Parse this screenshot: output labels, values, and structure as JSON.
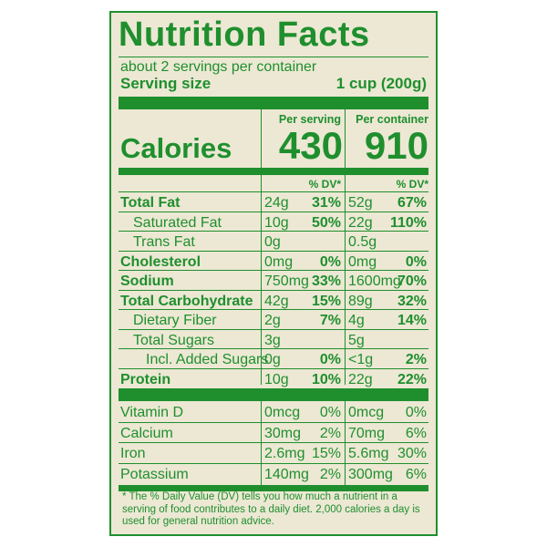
{
  "title": "Nutrition Facts",
  "servings": "about 2 servings per container",
  "serving_size": {
    "label": "Serving size",
    "value": "1 cup (200g)"
  },
  "columns": {
    "per_serving": "Per serving",
    "per_container": "Per container"
  },
  "calories": {
    "label": "Calories",
    "per_serving": "430",
    "per_container": "910"
  },
  "dv_header": "% DV*",
  "nutrients": [
    {
      "label": "Total Fat",
      "s_amt": "24g",
      "s_dv": "31%",
      "c_amt": "52g",
      "c_dv": "67%"
    },
    {
      "label": "Saturated Fat",
      "s_amt": "10g",
      "s_dv": "50%",
      "c_amt": "22g",
      "c_dv": "110%"
    },
    {
      "label": "Trans Fat",
      "s_amt": "0g",
      "s_dv": "",
      "c_amt": "0.5g",
      "c_dv": ""
    },
    {
      "label": "Cholesterol",
      "s_amt": "0mg",
      "s_dv": "0%",
      "c_amt": "0mg",
      "c_dv": "0%"
    },
    {
      "label": "Sodium",
      "s_amt": "750mg",
      "s_dv": "33%",
      "c_amt": "1600mg",
      "c_dv": "70%"
    },
    {
      "label": "Total Carbohydrate",
      "s_amt": "42g",
      "s_dv": "15%",
      "c_amt": "89g",
      "c_dv": "32%"
    },
    {
      "label": "Dietary Fiber",
      "s_amt": "2g",
      "s_dv": "7%",
      "c_amt": "4g",
      "c_dv": "14%"
    },
    {
      "label": "Total Sugars",
      "s_amt": "3g",
      "s_dv": "",
      "c_amt": "5g",
      "c_dv": ""
    },
    {
      "label": "Incl. Added Sugars",
      "s_amt": "0g",
      "s_dv": "0%",
      "c_amt": "<1g",
      "c_dv": "2%"
    },
    {
      "label": "Protein",
      "s_amt": "10g",
      "s_dv": "10%",
      "c_amt": "22g",
      "c_dv": "22%"
    }
  ],
  "vitamins": [
    {
      "label": "Vitamin D",
      "s_amt": "0mcg",
      "s_dv": "0%",
      "c_amt": "0mcg",
      "c_dv": "0%"
    },
    {
      "label": "Calcium",
      "s_amt": "30mg",
      "s_dv": "2%",
      "c_amt": "70mg",
      "c_dv": "6%"
    },
    {
      "label": "Iron",
      "s_amt": "2.6mg",
      "s_dv": "15%",
      "c_amt": "5.6mg",
      "c_dv": "30%"
    },
    {
      "label": "Potassium",
      "s_amt": "140mg",
      "s_dv": "2%",
      "c_amt": "300mg",
      "c_dv": "6%"
    }
  ],
  "footnote": "* The % Daily Value (DV) tells you how much a nutrient in a serving of food contributes to a daily diet. 2,000 calories a day is used for general nutrition advice.",
  "colors": {
    "label_green": "#1f8f2e",
    "background": "#ece8d4"
  }
}
